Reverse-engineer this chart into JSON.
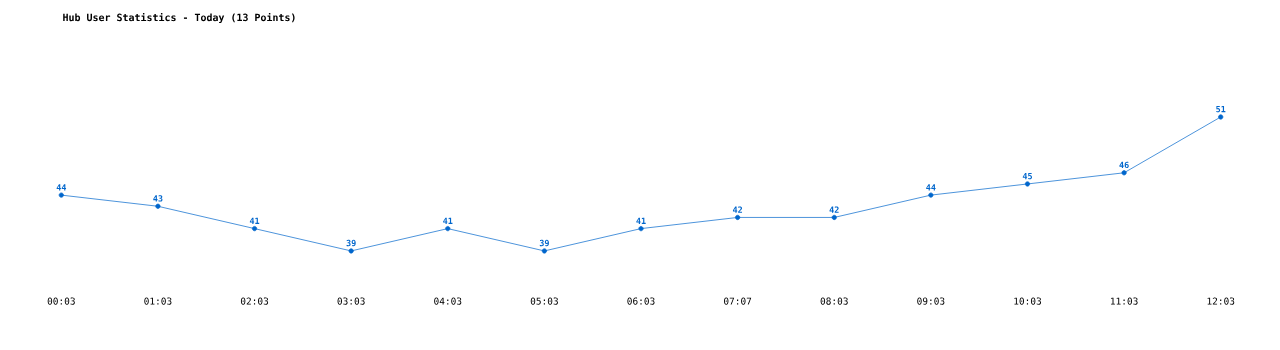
{
  "chart_data": {
    "type": "line",
    "title": "Hub User Statistics - Today (13 Points)",
    "categories": [
      "00:03",
      "01:03",
      "02:03",
      "03:03",
      "04:03",
      "05:03",
      "06:03",
      "07:07",
      "08:03",
      "09:03",
      "10:03",
      "11:03",
      "12:03"
    ],
    "series": [
      {
        "color": "#0066cc",
        "values": [
          44,
          43,
          41,
          39,
          41,
          39,
          41,
          42,
          42,
          44,
          45,
          46,
          51
        ]
      }
    ],
    "data_labels": true,
    "marker": "circle",
    "line_style": "solid",
    "tick_labels": "x"
  }
}
